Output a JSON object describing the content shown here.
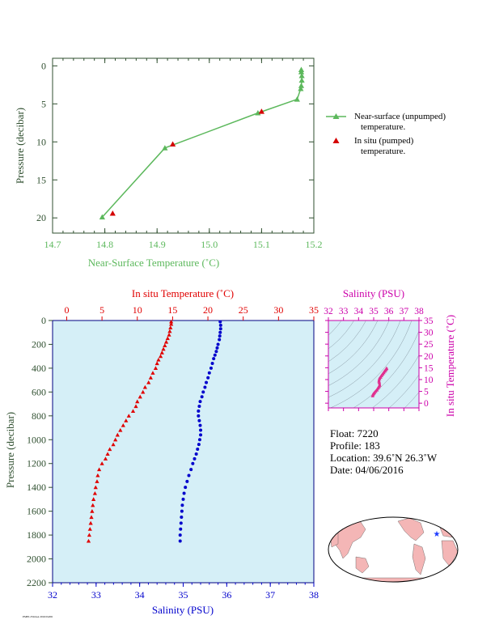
{
  "chart_data": [
    {
      "type": "line",
      "xlabel": "Near-Surface Temperature (˚C)",
      "ylabel": "Pressure (decibar)",
      "xlim": [
        14.7,
        15.2
      ],
      "ylim": [
        22,
        -1
      ],
      "x_ticks": [
        "14.7",
        "14.8",
        "14.9",
        "15.0",
        "15.1",
        "15.2"
      ],
      "y_ticks": [
        "0",
        "5",
        "10",
        "15",
        "20"
      ],
      "grid": false,
      "legend_position": "right",
      "series": [
        {
          "name": "Near-surface (unpumped) temperature.",
          "color": "#5cb85c",
          "points": [
            [
              15.176,
              0.5
            ],
            [
              15.176,
              0.8
            ],
            [
              15.177,
              1.3
            ],
            [
              15.177,
              1.9
            ],
            [
              15.176,
              2.6
            ],
            [
              15.175,
              3.0
            ],
            [
              15.168,
              4.4
            ],
            [
              15.093,
              6.2
            ],
            [
              14.915,
              10.8
            ],
            [
              14.795,
              19.9
            ]
          ]
        },
        {
          "name": "In situ (pumped) temperature.",
          "color": "#d40000",
          "points": [
            [
              15.1,
              6.0
            ],
            [
              14.93,
              10.3
            ],
            [
              14.815,
              19.4
            ]
          ]
        }
      ]
    },
    {
      "type": "scatter",
      "x_top_label": "In situ Temperature (˚C)",
      "x_bottom_label": "Salinity (PSU)",
      "ylabel": "Pressure (decibar)",
      "temperature_ticks": [
        "0",
        "5",
        "10",
        "15",
        "20",
        "25",
        "30",
        "35"
      ],
      "salinity_ticks": [
        "32",
        "33",
        "34",
        "35",
        "36",
        "37",
        "38"
      ],
      "pressure_ticks": [
        "0",
        "200",
        "400",
        "600",
        "800",
        "1000",
        "1200",
        "1400",
        "1600",
        "1800",
        "2000",
        "2200"
      ],
      "xlim_temperature": [
        -2,
        35
      ],
      "xlim_salinity": [
        32,
        38
      ],
      "ylim": [
        0,
        2200
      ],
      "background": "#d5eff7",
      "series": [
        {
          "name": "In situ Temperature",
          "color": "#e00000",
          "points": [
            [
              14.8,
              10
            ],
            [
              14.8,
              30
            ],
            [
              14.7,
              60
            ],
            [
              14.6,
              90
            ],
            [
              14.5,
              120
            ],
            [
              14.3,
              150
            ],
            [
              14.1,
              180
            ],
            [
              13.9,
              210
            ],
            [
              13.7,
              240
            ],
            [
              13.5,
              270
            ],
            [
              13.3,
              300
            ],
            [
              13.0,
              330
            ],
            [
              12.8,
              360
            ],
            [
              12.6,
              400
            ],
            [
              12.2,
              440
            ],
            [
              11.9,
              480
            ],
            [
              11.6,
              520
            ],
            [
              11.1,
              560
            ],
            [
              10.8,
              600
            ],
            [
              10.4,
              640
            ],
            [
              10.0,
              680
            ],
            [
              9.8,
              720
            ],
            [
              9.4,
              760
            ],
            [
              8.8,
              800
            ],
            [
              8.4,
              840
            ],
            [
              8.0,
              880
            ],
            [
              7.6,
              920
            ],
            [
              7.2,
              960
            ],
            [
              6.9,
              1000
            ],
            [
              6.6,
              1040
            ],
            [
              6.1,
              1080
            ],
            [
              5.8,
              1120
            ],
            [
              5.5,
              1160
            ],
            [
              5.0,
              1200
            ],
            [
              4.6,
              1250
            ],
            [
              4.4,
              1300
            ],
            [
              4.3,
              1350
            ],
            [
              4.1,
              1400
            ],
            [
              4.0,
              1450
            ],
            [
              3.8,
              1500
            ],
            [
              3.7,
              1550
            ],
            [
              3.6,
              1600
            ],
            [
              3.5,
              1650
            ],
            [
              3.4,
              1700
            ],
            [
              3.3,
              1750
            ],
            [
              3.2,
              1800
            ],
            [
              3.1,
              1850
            ]
          ]
        },
        {
          "name": "Salinity",
          "color": "#0000cc",
          "points": [
            [
              35.85,
              10
            ],
            [
              35.86,
              40
            ],
            [
              35.86,
              70
            ],
            [
              35.85,
              100
            ],
            [
              35.84,
              130
            ],
            [
              35.83,
              160
            ],
            [
              35.8,
              200
            ],
            [
              35.78,
              230
            ],
            [
              35.76,
              260
            ],
            [
              35.73,
              290
            ],
            [
              35.7,
              320
            ],
            [
              35.67,
              360
            ],
            [
              35.64,
              400
            ],
            [
              35.6,
              440
            ],
            [
              35.57,
              480
            ],
            [
              35.53,
              520
            ],
            [
              35.5,
              560
            ],
            [
              35.46,
              600
            ],
            [
              35.43,
              640
            ],
            [
              35.39,
              680
            ],
            [
              35.37,
              720
            ],
            [
              35.35,
              760
            ],
            [
              35.35,
              800
            ],
            [
              35.37,
              840
            ],
            [
              35.39,
              880
            ],
            [
              35.4,
              920
            ],
            [
              35.4,
              960
            ],
            [
              35.38,
              1000
            ],
            [
              35.36,
              1040
            ],
            [
              35.33,
              1080
            ],
            [
              35.3,
              1120
            ],
            [
              35.26,
              1160
            ],
            [
              35.22,
              1200
            ],
            [
              35.18,
              1250
            ],
            [
              35.13,
              1300
            ],
            [
              35.09,
              1350
            ],
            [
              35.05,
              1400
            ],
            [
              35.02,
              1450
            ],
            [
              35.0,
              1500
            ],
            [
              34.98,
              1550
            ],
            [
              34.97,
              1600
            ],
            [
              34.96,
              1650
            ],
            [
              34.95,
              1700
            ],
            [
              34.94,
              1750
            ],
            [
              34.93,
              1800
            ],
            [
              34.93,
              1850
            ]
          ]
        }
      ]
    },
    {
      "type": "scatter",
      "x_top_label": "Salinity (PSU)",
      "y_right_label": "In situ Temperature (˚C)",
      "salinity_ticks": [
        "32",
        "33",
        "34",
        "35",
        "36",
        "37",
        "38"
      ],
      "temperature_ticks": [
        "0",
        "5",
        "10",
        "15",
        "20",
        "25",
        "30",
        "35"
      ],
      "xlim": [
        32,
        38
      ],
      "ylim": [
        -2,
        35
      ],
      "color": "#e0308f",
      "points": [
        [
          34.93,
          3.1
        ],
        [
          34.96,
          3.6
        ],
        [
          35.0,
          4.0
        ],
        [
          35.05,
          4.4
        ],
        [
          35.13,
          5.0
        ],
        [
          35.22,
          5.6
        ],
        [
          35.3,
          6.4
        ],
        [
          35.36,
          7.0
        ],
        [
          35.4,
          7.6
        ],
        [
          35.37,
          8.8
        ],
        [
          35.35,
          9.4
        ],
        [
          35.39,
          10.4
        ],
        [
          35.46,
          11.0
        ],
        [
          35.53,
          11.7
        ],
        [
          35.6,
          12.3
        ],
        [
          35.67,
          12.9
        ],
        [
          35.73,
          13.5
        ],
        [
          35.78,
          13.9
        ],
        [
          35.83,
          14.3
        ],
        [
          35.86,
          14.7
        ],
        [
          35.85,
          14.8
        ]
      ]
    }
  ],
  "float_info": {
    "float": "Float:  7220",
    "profile": "Profile:  183",
    "location": "Location:  39.6˚N  26.3˚W",
    "date": "Date:  04/06/2016"
  },
  "footer_small_text": "PMEL/NOAA  2016/04/06",
  "map": {
    "marker_color": "#1e3cff",
    "land_color": "#f4b6b6",
    "ocean_color": "#ffffff"
  },
  "colors": {
    "green": "#5cb85c",
    "red": "#d40000",
    "blue": "#0000cc",
    "magenta": "#cc00aa",
    "axis_green": "#2f4f2f"
  }
}
